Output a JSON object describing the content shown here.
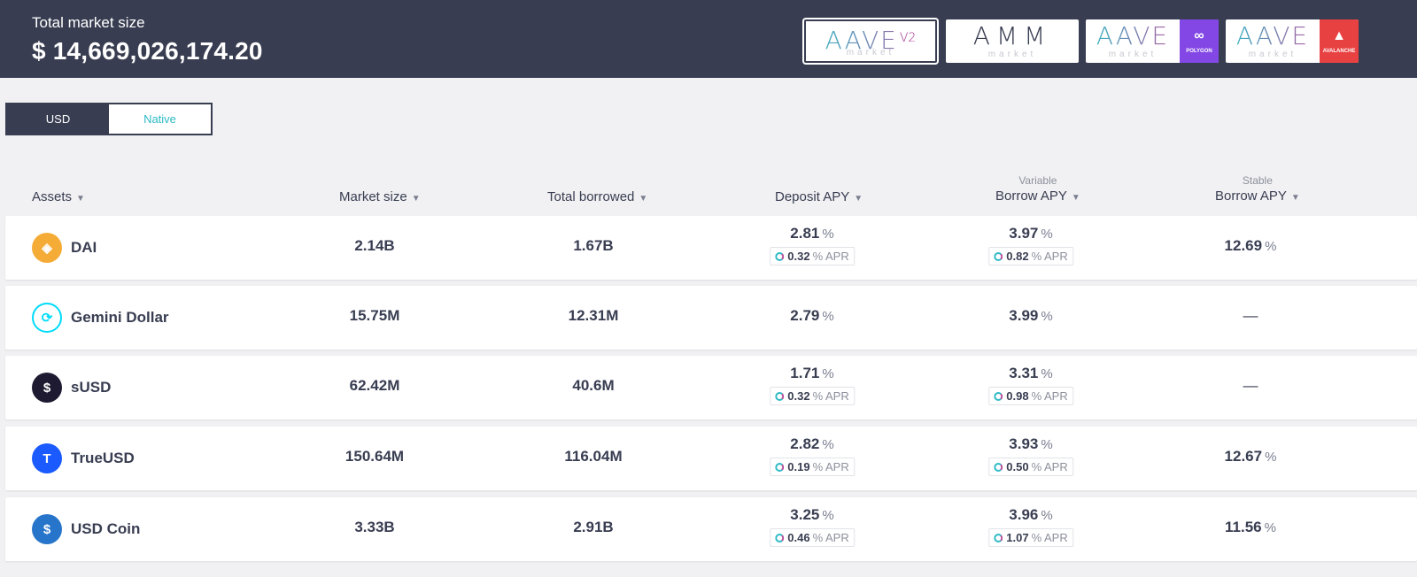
{
  "header": {
    "title": "Total market size",
    "value": "$ 14,669,026,174.20"
  },
  "markets": [
    {
      "logo": "AAVE",
      "version": "V2",
      "sub": "market",
      "badge": "",
      "active": true
    },
    {
      "logo": "AMM",
      "version": "",
      "sub": "market",
      "badge": "",
      "active": false
    },
    {
      "logo": "AAVE",
      "version": "",
      "sub": "market",
      "badge": "POLYGON",
      "badge_icon": "polygon-icon",
      "badge_color": "#8247e5",
      "active": false
    },
    {
      "logo": "AAVE",
      "version": "",
      "sub": "market",
      "badge": "AVALANCHE",
      "badge_icon": "avalanche-icon",
      "badge_color": "#e84142",
      "active": false
    }
  ],
  "currency_toggle": {
    "usd": "USD",
    "native": "Native",
    "selected": "Native"
  },
  "table": {
    "headers": {
      "assets": "Assets",
      "market_size": "Market size",
      "total_borrowed": "Total borrowed",
      "deposit_apy": "Deposit APY",
      "variable_pre": "Variable",
      "variable_borrow": "Borrow APY",
      "stable_pre": "Stable",
      "stable_borrow": "Borrow APY"
    },
    "percent_sign": "%",
    "apr_label": "% APR",
    "rows": [
      {
        "name": "DAI",
        "icon": "dai-icon",
        "icon_color": "#f5ac37",
        "market_size": "2.14B",
        "total_borrowed": "1.67B",
        "deposit_apy": "2.81",
        "deposit_apr": "0.32",
        "variable_apy": "3.97",
        "variable_apr": "0.82",
        "stable_apy": "12.69"
      },
      {
        "name": "Gemini Dollar",
        "icon": "gemini-dollar-icon",
        "icon_color": "#00dcfa",
        "market_size": "15.75M",
        "total_borrowed": "12.31M",
        "deposit_apy": "2.79",
        "deposit_apr": "",
        "variable_apy": "3.99",
        "variable_apr": "",
        "stable_apy": "—"
      },
      {
        "name": "sUSD",
        "icon": "susd-icon",
        "icon_color": "#1e1a31",
        "market_size": "62.42M",
        "total_borrowed": "40.6M",
        "deposit_apy": "1.71",
        "deposit_apr": "0.32",
        "variable_apy": "3.31",
        "variable_apr": "0.98",
        "stable_apy": "—"
      },
      {
        "name": "TrueUSD",
        "icon": "trueusd-icon",
        "icon_color": "#1a5aff",
        "market_size": "150.64M",
        "total_borrowed": "116.04M",
        "deposit_apy": "2.82",
        "deposit_apr": "0.19",
        "variable_apy": "3.93",
        "variable_apr": "0.50",
        "stable_apy": "12.67"
      },
      {
        "name": "USD Coin",
        "icon": "usd-coin-icon",
        "icon_color": "#2775ca",
        "market_size": "3.33B",
        "total_borrowed": "2.91B",
        "deposit_apy": "3.25",
        "deposit_apr": "0.46",
        "variable_apy": "3.96",
        "variable_apr": "1.07",
        "stable_apy": "11.56"
      }
    ]
  }
}
